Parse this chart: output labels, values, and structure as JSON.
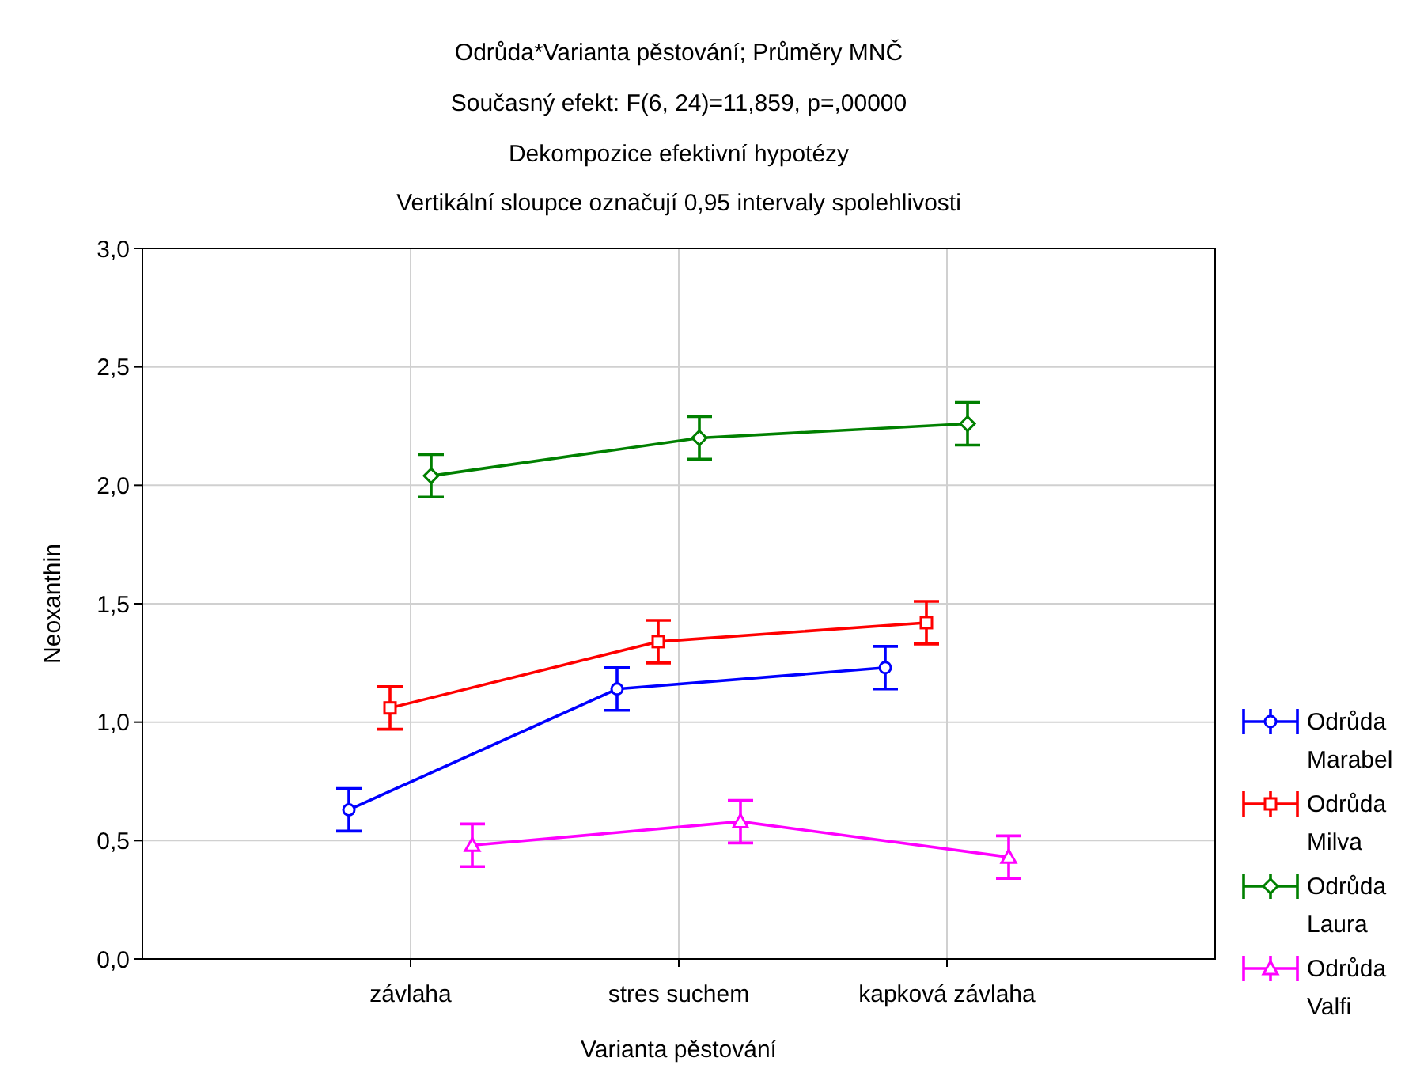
{
  "chart_data": {
    "type": "line",
    "title": "Odrůda*Varianta pěstování; Průměry MNČ",
    "subtitle": "Současný efekt: F(6, 24)=11,859, p=,00000",
    "annotations": [
      "Dekompozice efektivní hypotézy",
      "Vertikální sloupce označují 0,95 intervaly spolehlivosti"
    ],
    "xlabel": "Varianta pěstování",
    "ylabel": "Neoxanthin",
    "categories": [
      "závlaha",
      "stres suchem",
      "kapková závlaha"
    ],
    "ylim": [
      0,
      3
    ],
    "yticks": [
      {
        "value": 0,
        "label": "0,0"
      },
      {
        "value": 0.5,
        "label": "0,5"
      },
      {
        "value": 1,
        "label": "1,0"
      },
      {
        "value": 1.5,
        "label": "1,5"
      },
      {
        "value": 2,
        "label": "2,0"
      },
      {
        "value": 2.5,
        "label": "2,5"
      },
      {
        "value": 3,
        "label": "3,0"
      }
    ],
    "grid": true,
    "legend": "bottom right",
    "line_style": "solid",
    "series": [
      {
        "name": "Odrůda Marabel",
        "color": "#0000ff",
        "marker": "circle",
        "values": [
          0.63,
          1.14,
          1.23
        ],
        "errors": [
          0.09,
          0.09,
          0.09
        ]
      },
      {
        "name": "Odrůda Milva",
        "color": "#ff0000",
        "marker": "square",
        "values": [
          1.06,
          1.34,
          1.42
        ],
        "errors": [
          0.09,
          0.09,
          0.09
        ]
      },
      {
        "name": "Odrůda Laura",
        "color": "#008000",
        "marker": "diamond",
        "values": [
          2.04,
          2.2,
          2.26
        ],
        "errors": [
          0.09,
          0.09,
          0.09
        ]
      },
      {
        "name": "Odrůda Valfi",
        "color": "#ff00ff",
        "marker": "triangle",
        "values": [
          0.48,
          0.58,
          0.43
        ],
        "errors": [
          0.09,
          0.09,
          0.09
        ]
      }
    ]
  }
}
